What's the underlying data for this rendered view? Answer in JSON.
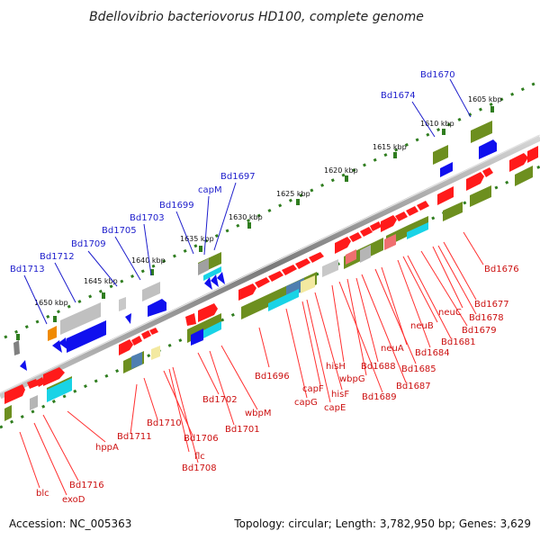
{
  "title": "Bdellovibrio bacteriovorus HD100, complete genome",
  "footer": {
    "accession": "Accession: NC_005363",
    "summary": "Topology: circular; Length: 3,782,950 bp; Genes: 3,629"
  },
  "scale_labels": [
    "1605 kbp",
    "1610 kbp",
    "1615 kbp",
    "1620 kbp",
    "1625 kbp",
    "1630 kbp",
    "1635 kbp",
    "1640 kbp",
    "1645 kbp",
    "1650 kbp"
  ],
  "top_gene_labels": [
    "Bd1670",
    "Bd1674",
    "Bd1697",
    "capM",
    "Bd1699",
    "Bd1703",
    "Bd1705",
    "Bd1709",
    "Bd1712",
    "Bd1713"
  ],
  "bottom_gene_labels": [
    "Bd1676",
    "Bd1677",
    "neuC",
    "Bd1678",
    "Bd1679",
    "neuB",
    "Bd1681",
    "Bd1684",
    "neuA",
    "Bd1685",
    "Bd1688",
    "hisH",
    "wbpG",
    "Bd1687",
    "hisF",
    "Bd1689",
    "capF",
    "capE",
    "capG",
    "Bd1696",
    "Bd1702",
    "wbpM",
    "Bd1701",
    "Bd1711",
    "Bd1710",
    "Bd1706",
    "flc",
    "Bd1708",
    "hppA",
    "Bd1716",
    "blc",
    "exoD"
  ],
  "colors": {
    "backbone": "#8a8a8a",
    "scale_dots": "#2f7d1f",
    "top_label": "#1e1ecc",
    "bottom_label": "#cc1111",
    "forward_gene": "#ff1a1a",
    "reverse_gene": "#1010ee",
    "olive_feature": "#6d8f1f",
    "cyan_feature": "#19d3e6",
    "grey_feature": "#b5b5b5"
  }
}
